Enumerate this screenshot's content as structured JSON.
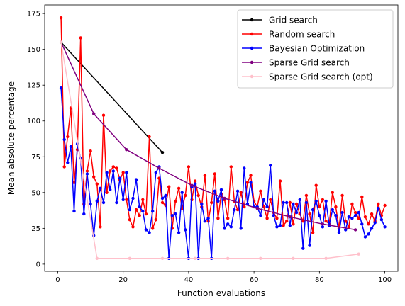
{
  "chart_data": {
    "type": "line",
    "xlabel": "Function evaluations",
    "ylabel": "Mean absolute percentage",
    "xlim": [
      -4,
      104
    ],
    "ylim": [
      -5,
      181
    ],
    "xticks": [
      0,
      20,
      40,
      60,
      80,
      100
    ],
    "yticks": [
      0,
      25,
      50,
      75,
      100,
      125,
      150,
      175
    ],
    "grid": false,
    "legend_position": "top-right",
    "series": [
      {
        "name": "Grid search",
        "color": "#000000",
        "x": [
          1,
          32
        ],
        "y": [
          155,
          78
        ]
      },
      {
        "name": "Random search",
        "color": "#ff0000",
        "x": [
          1,
          2,
          3,
          4,
          5,
          6,
          7,
          8,
          9,
          10,
          11,
          12,
          13,
          14,
          15,
          16,
          17,
          18,
          19,
          20,
          21,
          22,
          23,
          24,
          25,
          26,
          27,
          28,
          29,
          30,
          31,
          32,
          33,
          34,
          35,
          36,
          37,
          38,
          39,
          40,
          41,
          42,
          43,
          44,
          45,
          46,
          47,
          48,
          49,
          50,
          51,
          52,
          53,
          54,
          55,
          56,
          57,
          58,
          59,
          60,
          61,
          62,
          63,
          64,
          65,
          66,
          67,
          68,
          69,
          70,
          71,
          72,
          73,
          74,
          75,
          76,
          77,
          78,
          79,
          80,
          81,
          82,
          83,
          84,
          85,
          86,
          87,
          88,
          89,
          90,
          91,
          92,
          93,
          94,
          95,
          96,
          97,
          98,
          99,
          100
        ],
        "y": [
          172,
          68,
          89,
          109,
          57,
          80,
          158,
          42,
          65,
          79,
          61,
          56,
          26,
          104,
          50,
          65,
          68,
          67,
          59,
          64,
          45,
          31,
          26,
          38,
          34,
          45,
          35,
          89,
          25,
          31,
          60,
          43,
          41,
          54,
          25,
          44,
          53,
          39,
          48,
          68,
          45,
          58,
          48,
          40,
          62,
          30,
          43,
          63,
          32,
          49,
          45,
          32,
          68,
          44,
          38,
          50,
          40,
          57,
          62,
          44,
          40,
          51,
          40,
          32,
          45,
          36,
          32,
          58,
          27,
          30,
          43,
          28,
          42,
          35,
          30,
          48,
          35,
          22,
          55,
          40,
          45,
          30,
          28,
          50,
          40,
          25,
          48,
          30,
          26,
          42,
          36,
          32,
          47,
          33,
          28,
          35,
          30,
          42,
          34,
          41
        ]
      },
      {
        "name": "Bayesian Optimization",
        "color": "#0000ff",
        "x": [
          1,
          2,
          3,
          4,
          5,
          6,
          7,
          8,
          9,
          10,
          11,
          12,
          13,
          14,
          15,
          16,
          17,
          18,
          19,
          20,
          21,
          22,
          23,
          24,
          25,
          26,
          27,
          28,
          29,
          30,
          31,
          32,
          33,
          34,
          35,
          36,
          37,
          38,
          39,
          40,
          41,
          42,
          43,
          44,
          45,
          46,
          47,
          48,
          49,
          50,
          51,
          52,
          53,
          54,
          55,
          56,
          57,
          58,
          59,
          60,
          61,
          62,
          63,
          64,
          65,
          66,
          67,
          68,
          69,
          70,
          71,
          72,
          73,
          74,
          75,
          76,
          77,
          78,
          79,
          80,
          81,
          82,
          83,
          84,
          85,
          86,
          87,
          88,
          89,
          90,
          91,
          92,
          93,
          94,
          95,
          96,
          97,
          98,
          99,
          100
        ],
        "y": [
          123,
          87,
          71,
          82,
          37,
          84,
          74,
          35,
          63,
          42,
          20,
          44,
          53,
          43,
          64,
          52,
          65,
          43,
          60,
          45,
          64,
          38,
          46,
          59,
          40,
          37,
          24,
          22,
          37,
          64,
          68,
          46,
          48,
          4,
          34,
          35,
          22,
          50,
          24,
          4,
          54,
          56,
          4,
          42,
          30,
          32,
          4,
          51,
          44,
          52,
          25,
          28,
          26,
          38,
          51,
          25,
          67,
          42,
          57,
          40,
          40,
          34,
          45,
          40,
          69,
          34,
          26,
          27,
          43,
          43,
          27,
          42,
          36,
          45,
          11,
          43,
          13,
          38,
          44,
          34,
          26,
          44,
          27,
          38,
          34,
          22,
          36,
          24,
          33,
          32,
          34,
          36,
          28,
          19,
          21,
          25,
          29,
          39,
          31,
          26
        ]
      },
      {
        "name": "Sparse Grid search",
        "color": "#800080",
        "x": [
          1,
          11,
          21,
          31,
          41,
          51,
          61,
          71,
          81,
          91
        ],
        "y": [
          155,
          105,
          80,
          67,
          55,
          46,
          39,
          33,
          28,
          24
        ]
      },
      {
        "name": "Sparse Grid search (opt)",
        "color": "#ffc0cb",
        "x": [
          1,
          12,
          22,
          32,
          42,
          52,
          62,
          72,
          82,
          92
        ],
        "y": [
          155,
          4,
          4,
          4,
          4,
          4,
          4,
          4,
          4,
          7
        ]
      }
    ]
  }
}
